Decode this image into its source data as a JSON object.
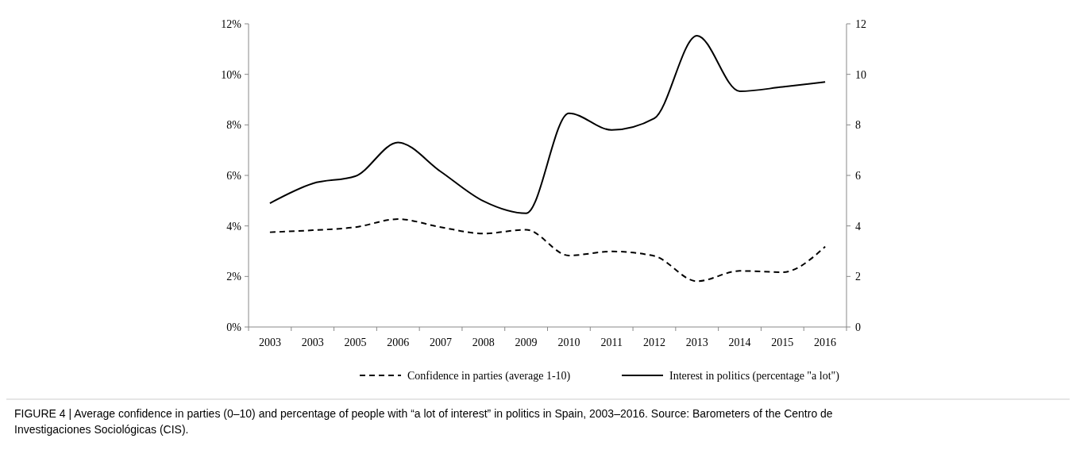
{
  "chart_data": {
    "type": "line",
    "categories": [
      "2003",
      "2003",
      "2005",
      "2006",
      "2007",
      "2008",
      "2009",
      "2010",
      "2011",
      "2012",
      "2013",
      "2014",
      "2015",
      "2016"
    ],
    "series": [
      {
        "name": "Confidence in parties (average 1-10)",
        "color": "#000000",
        "line_style": "dashed",
        "values": [
          3.75,
          3.83,
          3.95,
          4.27,
          3.95,
          3.7,
          3.85,
          2.83,
          2.99,
          2.81,
          1.81,
          2.22,
          2.17,
          3.18
        ]
      },
      {
        "name": "Interest in politics (percentage \"a lot\")",
        "color": "#000000",
        "line_style": "solid",
        "values": [
          4.9,
          5.68,
          5.97,
          7.3,
          6.15,
          4.98,
          4.5,
          8.46,
          7.8,
          8.26,
          11.53,
          9.33,
          9.5,
          9.7
        ]
      }
    ],
    "ylim": [
      0,
      12
    ],
    "yticks": [
      {
        "value": 0,
        "label": "0%"
      },
      {
        "value": 2,
        "label": "2%"
      },
      {
        "value": 4,
        "label": "4%"
      },
      {
        "value": 6,
        "label": "6%"
      },
      {
        "value": 8,
        "label": "8%"
      },
      {
        "value": 10,
        "label": "10%"
      },
      {
        "value": 12,
        "label": "12%"
      }
    ],
    "y2lim": [
      0,
      12
    ],
    "y2ticks": [
      0,
      2,
      4,
      6,
      8,
      10,
      12
    ],
    "grid": false,
    "legend": "bottom",
    "marker": "none",
    "annotations": [
      "FIGURE 4 | Average confidence in parties (0–10) and percentage of people with “a lot of interest” in politics in Spain, 2003–2016. Source: Barometers of the Centro de Investigaciones Sociológicas (CIS)."
    ]
  }
}
